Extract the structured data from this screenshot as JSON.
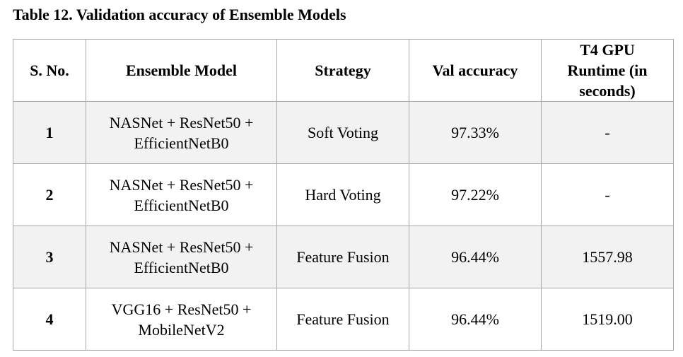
{
  "caption": "Table 12. Validation accuracy of Ensemble Models",
  "headers": [
    "S. No.",
    "Ensemble Model",
    "Strategy",
    "Val accuracy",
    "T4 GPU Runtime (in seconds)"
  ],
  "rows": [
    {
      "sno": "1",
      "model_line1": "NASNet + ResNet50 +",
      "model_line2": "EfficientNetB0",
      "strategy": "Soft Voting",
      "val_accuracy": "97.33%",
      "runtime": "-"
    },
    {
      "sno": "2",
      "model_line1": "NASNet + ResNet50 +",
      "model_line2": "EfficientNetB0",
      "strategy": "Hard Voting",
      "val_accuracy": "97.22%",
      "runtime": "-"
    },
    {
      "sno": "3",
      "model_line1": "NASNet + ResNet50 +",
      "model_line2": "EfficientNetB0",
      "strategy": "Feature Fusion",
      "val_accuracy": "96.44%",
      "runtime": "1557.98"
    },
    {
      "sno": "4",
      "model_line1": "VGG16 + ResNet50 +",
      "model_line2": "MobileNetV2",
      "strategy": "Feature Fusion",
      "val_accuracy": "96.44%",
      "runtime": "1519.00"
    }
  ]
}
